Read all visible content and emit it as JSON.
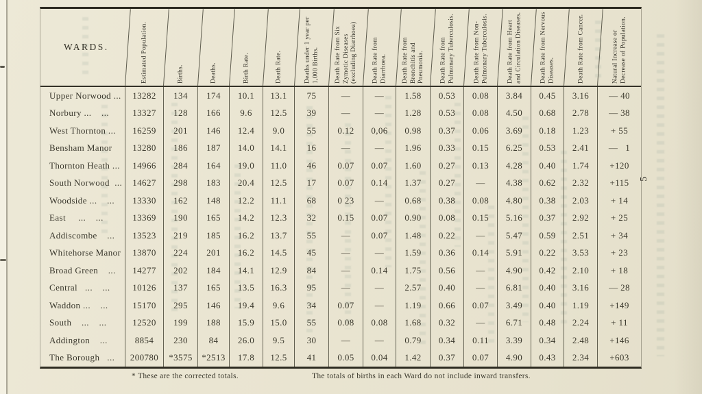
{
  "page": {
    "page_number": "5",
    "footnotes": {
      "corrected_totals": "* These are the corrected totals.",
      "inward_transfers": "The totals of births in each Ward do not include inward transfers."
    },
    "colors": {
      "paper": "#eae5d2",
      "ink": "#3a382c",
      "table_line": "#3e3c2e",
      "ghost_showthrough": "#80988c"
    }
  },
  "table": {
    "columns": [
      "WARDS.",
      "Estimated Population.",
      "Births.",
      "Deaths.",
      "Birth Rate.",
      "Death Rate.",
      "Deaths under 1 year per 1,000 Births.",
      "Death Rate from Six Zymotic Diseases (excluding Diarrhoea)",
      "Death Rate from Diarrhoea.",
      "Death Rate from Bronchitis and Pneumonia.",
      "Death Rate from Pulmonary Tuberculosis.",
      "Death Rate from Non-Pulmonary Tuberculosis.",
      "Death Rate from Heart and Circulation Diseases.",
      "Death Rate from Nervous Diseases.",
      "Death Rate from Cancer.",
      "Natural Increase or Decrease of Population."
    ],
    "rows": [
      {
        "ward": "Upper Norwood ...",
        "values": [
          "13282",
          "134",
          "174",
          "10.1",
          "13.1",
          "75",
          "—",
          "—",
          "1.58",
          "0.53",
          "0.08",
          "3.84",
          "0.45",
          "3.16",
          "— 40"
        ]
      },
      {
        "ward": "Norbury ...    ...",
        "values": [
          "13327",
          "128",
          "166",
          "9.6",
          "12.5",
          "39",
          "—",
          "—",
          "1.28",
          "0.53",
          "0.08",
          "4.50",
          "0.68",
          "2.78",
          "— 38"
        ]
      },
      {
        "ward": "West Thornton ...",
        "values": [
          "16259",
          "201",
          "146",
          "12.4",
          "9.0",
          "55",
          "0.12",
          "0,06",
          "0.98",
          "0.37",
          "0.06",
          "3.69",
          "0.18",
          "1.23",
          "+ 55"
        ]
      },
      {
        "ward": "Bensham Manor",
        "values": [
          "13280",
          "186",
          "187",
          "14.0",
          "14.1",
          "16",
          "—",
          "—",
          "1.96",
          "0.33",
          "0.15",
          "6.25",
          "0.53",
          "2.41",
          "—   1"
        ]
      },
      {
        "ward": "Thornton Heath ...",
        "values": [
          "14966",
          "284",
          "164",
          "19.0",
          "11.0",
          "46",
          "0.07",
          "0.07",
          "1.60",
          "0.27",
          "0.13",
          "4.28",
          "0.40",
          "1.74",
          "+120"
        ]
      },
      {
        "ward": "South Norwood  ...",
        "values": [
          "14627",
          "298",
          "183",
          "20.4",
          "12.5",
          "17",
          "0.07",
          "0.14",
          "1.37",
          "0.27",
          "—",
          "4.38",
          "0.62",
          "2.32",
          "+115"
        ]
      },
      {
        "ward": "Woodside ...    ...",
        "values": [
          "13330",
          "162",
          "148",
          "12.2",
          "11.1",
          "68",
          "0 23",
          "—",
          "0.68",
          "0.38",
          "0.08",
          "4.80",
          "0.38",
          "2.03",
          "+ 14"
        ]
      },
      {
        "ward": "East     ...    ...",
        "values": [
          "13369",
          "190",
          "165",
          "14.2",
          "12.3",
          "32",
          "0.15",
          "0.07",
          "0.90",
          "0.08",
          "0.15",
          "5.16",
          "0.37",
          "2.92",
          "+ 25"
        ]
      },
      {
        "ward": "Addiscombe    ...",
        "values": [
          "13523",
          "219",
          "185",
          "16.2",
          "13.7",
          "55",
          "—",
          "0.07",
          "1.48",
          "0.22",
          "—",
          "5.47",
          "0.59",
          "2.51",
          "+ 34"
        ]
      },
      {
        "ward": "Whitehorse Manor",
        "values": [
          "13870",
          "224",
          "201",
          "16.2",
          "14.5",
          "45",
          "—",
          "—",
          "1.59",
          "0.36",
          "0.14",
          "5.91",
          "0.22",
          "3.53",
          "+ 23"
        ]
      },
      {
        "ward": "Broad Green    ...",
        "values": [
          "14277",
          "202",
          "184",
          "14.1",
          "12.9",
          "84",
          "—",
          "0.14",
          "1.75",
          "0.56",
          "—",
          "4.90",
          "0.42",
          "2.10",
          "+ 18"
        ]
      },
      {
        "ward": "Central   ...    ...",
        "values": [
          "10126",
          "137",
          "165",
          "13.5",
          "16.3",
          "95",
          "—",
          "—",
          "2.57",
          "0.40",
          "—",
          "6.81",
          "0.40",
          "3.16",
          "— 28"
        ]
      },
      {
        "ward": "Waddon ...    ...",
        "values": [
          "15170",
          "295",
          "146",
          "19.4",
          "9.6",
          "34",
          "0.07",
          "—",
          "1.19",
          "0.66",
          "0.07",
          "3.49",
          "0.40",
          "1.19",
          "+149"
        ]
      },
      {
        "ward": "South    ...    ...",
        "values": [
          "12520",
          "199",
          "188",
          "15.9",
          "15.0",
          "55",
          "0.08",
          "0.08",
          "1.68",
          "0.32",
          "—",
          "6.71",
          "0.48",
          "2.24",
          "+ 11"
        ]
      },
      {
        "ward": "Addington    ...",
        "values": [
          "8854",
          "230",
          "84",
          "26.0",
          "9.5",
          "30",
          "—",
          "—",
          "0.79",
          "0.34",
          "0.11",
          "3.39",
          "0.34",
          "2.48",
          "+146"
        ]
      },
      {
        "ward": "The Borough   ...",
        "values": [
          "200780",
          "*3575",
          "*2513",
          "17.8",
          "12.5",
          "41",
          "0.05",
          "0.04",
          "1.42",
          "0.37",
          "0.07",
          "4.90",
          "0.43",
          "2.34",
          "+603"
        ]
      }
    ]
  }
}
